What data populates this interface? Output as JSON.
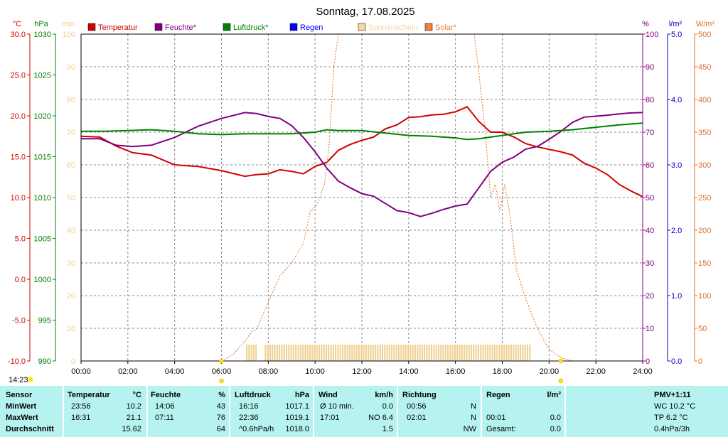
{
  "chart_data": {
    "type": "line",
    "title": "Sonntag, 17.08.2025",
    "current_time": "14:23",
    "x_ticks": [
      "00:00",
      "02:00",
      "04:00",
      "06:00",
      "08:00",
      "10:00",
      "12:00",
      "14:00",
      "16:00",
      "18:00",
      "20:00",
      "22:00",
      "24:00"
    ],
    "sunrise_marker_time": "06:00",
    "sunset_marker_time": "20:30",
    "axes": {
      "temp": {
        "unit": "°C",
        "min": -10,
        "max": 30,
        "ticks": [
          "30.0",
          "25.0",
          "20.0",
          "15.0",
          "10.0",
          "5.0",
          "0.0",
          "-5.0",
          "-10.0"
        ],
        "color": "#d00000"
      },
      "pressure": {
        "unit": "hPa",
        "min": 990,
        "max": 1030,
        "ticks": [
          "1030",
          "1025",
          "1020",
          "1015",
          "1010",
          "1005",
          "1000",
          "995",
          "990"
        ],
        "color": "#008000"
      },
      "sunshine": {
        "unit": "min",
        "min": 0,
        "max": 100,
        "ticks": [
          "100",
          "90",
          "80",
          "70",
          "60",
          "50",
          "40",
          "30",
          "20",
          "10",
          "0"
        ],
        "color": "#f0d090"
      },
      "humidity": {
        "unit": "%",
        "min": 0,
        "max": 100,
        "ticks": [
          "100",
          "90",
          "80",
          "70",
          "60",
          "50",
          "40",
          "30",
          "20",
          "10",
          "0"
        ],
        "color": "#800080"
      },
      "rain": {
        "unit": "l/m²",
        "min": 0,
        "max": 5,
        "ticks": [
          "5.0",
          "4.0",
          "3.0",
          "2.0",
          "1.0",
          "0.0"
        ],
        "color": "#0000c0"
      },
      "solar": {
        "unit": "W/m²",
        "min": 0,
        "max": 500,
        "ticks": [
          "500",
          "450",
          "400",
          "350",
          "300",
          "250",
          "200",
          "150",
          "100",
          "50",
          "0"
        ],
        "color": "#e07020"
      }
    },
    "legend": [
      {
        "label": "Temperatur",
        "color": "#d00000"
      },
      {
        "label": "Feuchte*",
        "color": "#800080"
      },
      {
        "label": "Luftdruck*",
        "color": "#008000"
      },
      {
        "label": "Regen",
        "color": "#0000ff"
      },
      {
        "label": "Sonnenschein",
        "color": "#f5d5a0"
      },
      {
        "label": "Solar*",
        "color": "#f08040"
      }
    ],
    "series": [
      {
        "name": "Temperatur",
        "axis": "temp",
        "x": [
          0,
          0.8,
          1.5,
          2.2,
          3,
          4,
          5,
          6,
          7,
          7.5,
          8,
          8.5,
          9,
          9.5,
          10,
          10.5,
          11,
          11.5,
          12,
          12.5,
          13,
          13.5,
          14,
          14.5,
          15,
          15.5,
          16,
          16.5,
          17,
          17.5,
          18,
          18.5,
          19,
          19.5,
          20,
          20.5,
          21,
          21.5,
          22,
          22.5,
          23,
          23.5,
          24
        ],
        "y": [
          17.5,
          17.4,
          16.3,
          15.5,
          15.2,
          14.0,
          13.8,
          13.3,
          12.6,
          12.8,
          12.9,
          13.4,
          13.2,
          12.9,
          13.8,
          14.3,
          15.8,
          16.5,
          17.0,
          17.4,
          18.4,
          18.9,
          19.8,
          19.9,
          20.1,
          20.2,
          20.5,
          21.1,
          19.3,
          18.0,
          18.0,
          17.4,
          16.6,
          16.2,
          15.9,
          15.6,
          15.2,
          14.2,
          13.6,
          12.8,
          11.6,
          10.8,
          10.1
        ]
      },
      {
        "name": "Feuchte*",
        "axis": "humidity",
        "x": [
          0,
          0.8,
          1.5,
          2.2,
          3,
          4,
          5,
          6,
          7,
          7.5,
          8,
          8.5,
          9,
          9.5,
          10,
          10.5,
          11,
          11.5,
          12,
          12.5,
          13,
          13.5,
          14,
          14.5,
          15,
          15.5,
          16,
          16.5,
          17,
          17.5,
          18,
          18.5,
          19,
          19.5,
          20,
          20.5,
          21,
          21.5,
          22,
          22.5,
          23,
          23.5,
          24
        ],
        "y": [
          68,
          68,
          66,
          65.6,
          66,
          68.4,
          71.8,
          74.2,
          76,
          75.7,
          74.8,
          74.2,
          72,
          68.4,
          64,
          59,
          55,
          53,
          51.2,
          50.4,
          48.2,
          46,
          45.4,
          44.2,
          45.2,
          46.4,
          47.4,
          48,
          53,
          58,
          60.8,
          62.4,
          64.8,
          65.6,
          67.8,
          70.2,
          73,
          74.6,
          74.9,
          75.2,
          75.6,
          75.9,
          76
        ]
      },
      {
        "name": "Luftdruck*",
        "axis": "pressure",
        "x": [
          0,
          1,
          2,
          3,
          4,
          5,
          6,
          7,
          8,
          9,
          10,
          10.5,
          11,
          12,
          13,
          14,
          15,
          16,
          16.5,
          17,
          18,
          19,
          20,
          21,
          22,
          23,
          24
        ],
        "y": [
          1018.1,
          1018.1,
          1018.2,
          1018.3,
          1018.1,
          1017.8,
          1017.7,
          1017.8,
          1017.8,
          1017.8,
          1018.0,
          1018.3,
          1018.2,
          1018.2,
          1017.9,
          1017.6,
          1017.5,
          1017.3,
          1017.1,
          1017.2,
          1017.6,
          1018.0,
          1018.1,
          1018.3,
          1018.6,
          1018.9,
          1019.1
        ]
      },
      {
        "name": "Solar*",
        "axis": "solar",
        "x": [
          6,
          6.5,
          7,
          7.3,
          7.5,
          8,
          8.5,
          9,
          9.5,
          9.8,
          10,
          10.2,
          10.4,
          10.6,
          10.8,
          11,
          16.8,
          17,
          17.3,
          17.5,
          17.7,
          17.9,
          18.1,
          18.3,
          18.6,
          19,
          19.5,
          20,
          20.5,
          21
        ],
        "y": [
          0,
          10,
          30,
          45,
          48,
          90,
          130,
          150,
          180,
          230,
          235,
          250,
          270,
          330,
          450,
          520,
          520,
          440,
          340,
          250,
          270,
          230,
          270,
          230,
          140,
          95,
          50,
          18,
          5,
          0
        ]
      }
    ],
    "sunshine_bars": {
      "axis": "sunshine",
      "from": 7.05,
      "to": 19.2,
      "gap": [
        7.5,
        7.75
      ],
      "value": 5
    }
  },
  "stats": {
    "headers": {
      "sensor": "Sensor",
      "temp": "Temperatur",
      "temp_unit": "°C",
      "hum": "Feuchte",
      "hum_unit": "%",
      "pres": "Luftdruck",
      "pres_unit": "hPa",
      "wind": "Wind",
      "wind_unit": "km/h",
      "dir": "Richtung",
      "rain": "Regen",
      "rain_unit": "l/m²",
      "pmv": "PMV+1:11"
    },
    "rows": [
      {
        "label": "MinWert",
        "temp_time": "23:56",
        "temp": "10.2",
        "hum_time": "14:06",
        "hum": "43",
        "pres_time": "16:16",
        "pres": "1017.1",
        "wind_label": "Ø 10 min.",
        "wind": "0.0",
        "dir_time": "00:56",
        "dir": "N",
        "rain_time": "",
        "rain": "",
        "extra": "WC 10.2 °C"
      },
      {
        "label": "MaxWert",
        "temp_time": "16:31",
        "temp": "21.1",
        "hum_time": "07:11",
        "hum": "76",
        "pres_time": "22:36",
        "pres": "1019.1",
        "wind_label": "17:01",
        "wind": "NO 6.4",
        "dir_time": "02:01",
        "dir": "N",
        "rain_time": "00:01",
        "rain": "0.0",
        "extra": "TP 6.2 °C"
      },
      {
        "label": "Durchschnitt",
        "temp_time": "",
        "temp": "15.62",
        "hum_time": "",
        "hum": "64",
        "pres_time": "^0.6hPa/h",
        "pres": "1018.0",
        "wind_label": "",
        "wind": "1.5",
        "dir_time": "",
        "dir": "NW",
        "rain_time": "Gesamt:",
        "rain": "0.0",
        "extra": "0.4hPa/3h"
      }
    ]
  }
}
